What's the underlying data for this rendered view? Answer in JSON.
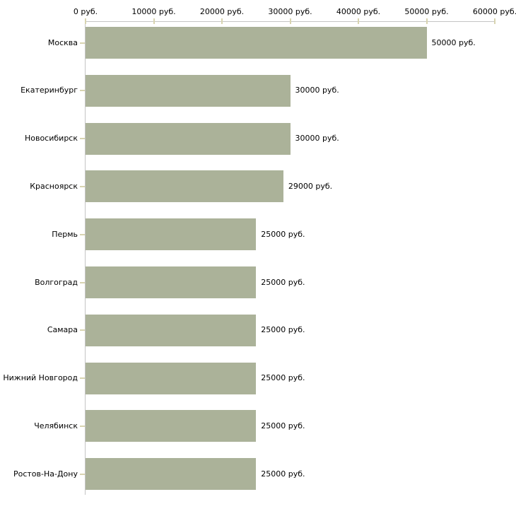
{
  "chart_data": {
    "type": "bar",
    "orientation": "horizontal",
    "title": "",
    "unit": "руб.",
    "categories": [
      "Москва",
      "Екатеринбург",
      "Новосибирск",
      "Красноярск",
      "Пермь",
      "Волгоград",
      "Самара",
      "Нижний Новгород",
      "Челябинск",
      "Ростов-На-Дону"
    ],
    "values": [
      50000,
      30000,
      30000,
      29000,
      25000,
      25000,
      25000,
      25000,
      25000,
      25000
    ],
    "value_labels": [
      "50000 руб.",
      "30000 руб.",
      "30000 руб.",
      "29000 руб.",
      "25000 руб.",
      "25000 руб.",
      "25000 руб.",
      "25000 руб.",
      "25000 руб.",
      "25000 руб."
    ],
    "x_axis": {
      "position": "top",
      "min": 0,
      "max": 60000,
      "tick_step": 10000,
      "tick_values": [
        0,
        10000,
        20000,
        30000,
        40000,
        50000,
        60000
      ],
      "tick_labels": [
        "0 руб.",
        "10000 руб.",
        "20000 руб.",
        "30000 руб.",
        "40000 руб.",
        "50000 руб.",
        "60000 руб."
      ]
    },
    "grid": false,
    "legend": false,
    "colors": {
      "bar_fill": "#abb299",
      "axis_line": "#c4c4c4",
      "tick_mark": "#d8d4b0",
      "label_text": "#000000",
      "background": "#ffffff"
    }
  }
}
